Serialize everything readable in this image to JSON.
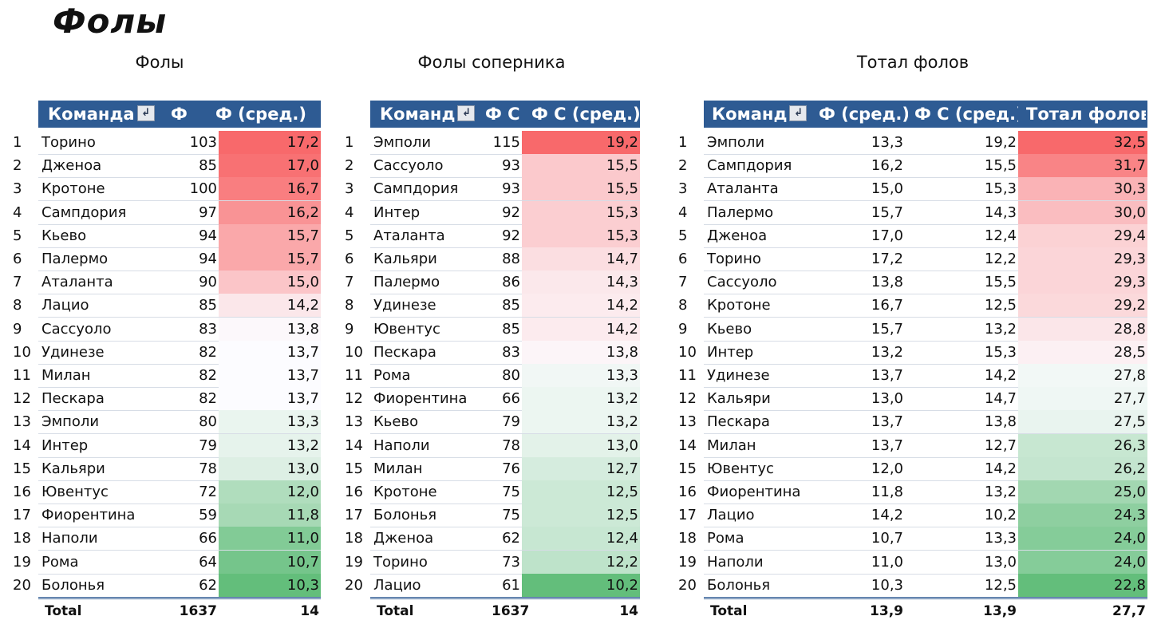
{
  "title": "Фолы",
  "colors": {
    "header_bg": "#2e5b93",
    "heat_red": "#f8696b",
    "heat_white": "#fcfcff",
    "heat_green": "#63be7b"
  },
  "tables": [
    {
      "caption": "Фолы",
      "headers": [
        "Команда",
        "Ф",
        "Ф (сред.)"
      ],
      "filter_icon": "filter-dropdown-icon",
      "rows": [
        {
          "rank": "1",
          "team": "Торино",
          "c1": "103",
          "c2": "17,2",
          "heat": 17.2
        },
        {
          "rank": "2",
          "team": "Дженоа",
          "c1": "85",
          "c2": "17,0",
          "heat": 17.0
        },
        {
          "rank": "3",
          "team": "Кротоне",
          "c1": "100",
          "c2": "16,7",
          "heat": 16.7
        },
        {
          "rank": "4",
          "team": "Сампдория",
          "c1": "97",
          "c2": "16,2",
          "heat": 16.2
        },
        {
          "rank": "5",
          "team": "Кьево",
          "c1": "94",
          "c2": "15,7",
          "heat": 15.7
        },
        {
          "rank": "6",
          "team": "Палермо",
          "c1": "94",
          "c2": "15,7",
          "heat": 15.7
        },
        {
          "rank": "7",
          "team": "Аталанта",
          "c1": "90",
          "c2": "15,0",
          "heat": 15.0
        },
        {
          "rank": "8",
          "team": "Лацио",
          "c1": "85",
          "c2": "14,2",
          "heat": 14.2
        },
        {
          "rank": "9",
          "team": "Сассуоло",
          "c1": "83",
          "c2": "13,8",
          "heat": 13.8
        },
        {
          "rank": "10",
          "team": "Удинезе",
          "c1": "82",
          "c2": "13,7",
          "heat": 13.7
        },
        {
          "rank": "11",
          "team": "Милан",
          "c1": "82",
          "c2": "13,7",
          "heat": 13.7
        },
        {
          "rank": "12",
          "team": "Пескара",
          "c1": "82",
          "c2": "13,7",
          "heat": 13.7
        },
        {
          "rank": "13",
          "team": "Эмполи",
          "c1": "80",
          "c2": "13,3",
          "heat": 13.3
        },
        {
          "rank": "14",
          "team": "Интер",
          "c1": "79",
          "c2": "13,2",
          "heat": 13.2
        },
        {
          "rank": "15",
          "team": "Кальяри",
          "c1": "78",
          "c2": "13,0",
          "heat": 13.0
        },
        {
          "rank": "16",
          "team": "Ювентус",
          "c1": "72",
          "c2": "12,0",
          "heat": 12.0
        },
        {
          "rank": "17",
          "team": "Фиорентина",
          "c1": "59",
          "c2": "11,8",
          "heat": 11.8
        },
        {
          "rank": "18",
          "team": "Наполи",
          "c1": "66",
          "c2": "11,0",
          "heat": 11.0
        },
        {
          "rank": "19",
          "team": "Рома",
          "c1": "64",
          "c2": "10,7",
          "heat": 10.7
        },
        {
          "rank": "20",
          "team": "Болонья",
          "c1": "62",
          "c2": "10,3",
          "heat": 10.3
        }
      ],
      "total": {
        "label": "Total",
        "c1": "1637",
        "c2": "14"
      }
    },
    {
      "caption": "Фолы соперника",
      "headers": [
        "Команд",
        "Ф С",
        "Ф С (сред.)"
      ],
      "filter_icon": "filter-dropdown-icon",
      "rows": [
        {
          "rank": "1",
          "team": "Эмполи",
          "c1": "115",
          "c2": "19,2",
          "heat": 19.2
        },
        {
          "rank": "2",
          "team": "Сассуоло",
          "c1": "93",
          "c2": "15,5",
          "heat": 15.5
        },
        {
          "rank": "3",
          "team": "Сампдория",
          "c1": "93",
          "c2": "15,5",
          "heat": 15.5
        },
        {
          "rank": "4",
          "team": "Интер",
          "c1": "92",
          "c2": "15,3",
          "heat": 15.3
        },
        {
          "rank": "5",
          "team": "Аталанта",
          "c1": "92",
          "c2": "15,3",
          "heat": 15.3
        },
        {
          "rank": "6",
          "team": "Кальяри",
          "c1": "88",
          "c2": "14,7",
          "heat": 14.7
        },
        {
          "rank": "7",
          "team": "Палермо",
          "c1": "86",
          "c2": "14,3",
          "heat": 14.3
        },
        {
          "rank": "8",
          "team": "Удинезе",
          "c1": "85",
          "c2": "14,2",
          "heat": 14.2
        },
        {
          "rank": "9",
          "team": "Ювентус",
          "c1": "85",
          "c2": "14,2",
          "heat": 14.2
        },
        {
          "rank": "10",
          "team": "Пескара",
          "c1": "83",
          "c2": "13,8",
          "heat": 13.8
        },
        {
          "rank": "11",
          "team": "Рома",
          "c1": "80",
          "c2": "13,3",
          "heat": 13.3
        },
        {
          "rank": "12",
          "team": "Фиорентина",
          "c1": "66",
          "c2": "13,2",
          "heat": 13.2
        },
        {
          "rank": "13",
          "team": "Кьево",
          "c1": "79",
          "c2": "13,2",
          "heat": 13.2
        },
        {
          "rank": "14",
          "team": "Наполи",
          "c1": "78",
          "c2": "13,0",
          "heat": 13.0
        },
        {
          "rank": "15",
          "team": "Милан",
          "c1": "76",
          "c2": "12,7",
          "heat": 12.7
        },
        {
          "rank": "16",
          "team": "Кротоне",
          "c1": "75",
          "c2": "12,5",
          "heat": 12.5
        },
        {
          "rank": "17",
          "team": "Болонья",
          "c1": "75",
          "c2": "12,5",
          "heat": 12.5
        },
        {
          "rank": "18",
          "team": "Дженоа",
          "c1": "62",
          "c2": "12,4",
          "heat": 12.4
        },
        {
          "rank": "19",
          "team": "Торино",
          "c1": "73",
          "c2": "12,2",
          "heat": 12.2
        },
        {
          "rank": "20",
          "team": "Лацио",
          "c1": "61",
          "c2": "10,2",
          "heat": 10.2
        }
      ],
      "total": {
        "label": "Total",
        "c1": "1637",
        "c2": "14"
      }
    },
    {
      "caption": "Тотал фолов",
      "headers": [
        "Команд",
        "Ф (сред.)",
        "Ф С (сред.)",
        "Тотал фолов"
      ],
      "filter_icon": "filter-dropdown-icon",
      "rows": [
        {
          "rank": "1",
          "team": "Эмполи",
          "c1": "13,3",
          "c2": "19,2",
          "c3": "32,5",
          "heat": 32.5
        },
        {
          "rank": "2",
          "team": "Сампдория",
          "c1": "16,2",
          "c2": "15,5",
          "c3": "31,7",
          "heat": 31.7
        },
        {
          "rank": "3",
          "team": "Аталанта",
          "c1": "15,0",
          "c2": "15,3",
          "c3": "30,3",
          "heat": 30.3
        },
        {
          "rank": "4",
          "team": "Палермо",
          "c1": "15,7",
          "c2": "14,3",
          "c3": "30,0",
          "heat": 30.0
        },
        {
          "rank": "5",
          "team": "Дженоа",
          "c1": "17,0",
          "c2": "12,4",
          "c3": "29,4",
          "heat": 29.4
        },
        {
          "rank": "6",
          "team": "Торино",
          "c1": "17,2",
          "c2": "12,2",
          "c3": "29,3",
          "heat": 29.3
        },
        {
          "rank": "7",
          "team": "Сассуоло",
          "c1": "13,8",
          "c2": "15,5",
          "c3": "29,3",
          "heat": 29.3
        },
        {
          "rank": "8",
          "team": "Кротоне",
          "c1": "16,7",
          "c2": "12,5",
          "c3": "29,2",
          "heat": 29.2
        },
        {
          "rank": "9",
          "team": "Кьево",
          "c1": "15,7",
          "c2": "13,2",
          "c3": "28,8",
          "heat": 28.8
        },
        {
          "rank": "10",
          "team": "Интер",
          "c1": "13,2",
          "c2": "15,3",
          "c3": "28,5",
          "heat": 28.5
        },
        {
          "rank": "11",
          "team": "Удинезе",
          "c1": "13,7",
          "c2": "14,2",
          "c3": "27,8",
          "heat": 27.8
        },
        {
          "rank": "12",
          "team": "Кальяри",
          "c1": "13,0",
          "c2": "14,7",
          "c3": "27,7",
          "heat": 27.7
        },
        {
          "rank": "13",
          "team": "Пескара",
          "c1": "13,7",
          "c2": "13,8",
          "c3": "27,5",
          "heat": 27.5
        },
        {
          "rank": "14",
          "team": "Милан",
          "c1": "13,7",
          "c2": "12,7",
          "c3": "26,3",
          "heat": 26.3
        },
        {
          "rank": "15",
          "team": "Ювентус",
          "c1": "12,0",
          "c2": "14,2",
          "c3": "26,2",
          "heat": 26.2
        },
        {
          "rank": "16",
          "team": "Фиорентина",
          "c1": "11,8",
          "c2": "13,2",
          "c3": "25,0",
          "heat": 25.0
        },
        {
          "rank": "17",
          "team": "Лацио",
          "c1": "14,2",
          "c2": "10,2",
          "c3": "24,3",
          "heat": 24.3
        },
        {
          "rank": "18",
          "team": "Рома",
          "c1": "10,7",
          "c2": "13,3",
          "c3": "24,0",
          "heat": 24.0
        },
        {
          "rank": "19",
          "team": "Наполи",
          "c1": "11,0",
          "c2": "13,0",
          "c3": "24,0",
          "heat": 24.0
        },
        {
          "rank": "20",
          "team": "Болонья",
          "c1": "10,3",
          "c2": "12,5",
          "c3": "22,8",
          "heat": 22.8
        }
      ],
      "total": {
        "label": "Total",
        "c1": "13,9",
        "c2": "13,9",
        "c3": "27,7"
      }
    }
  ]
}
